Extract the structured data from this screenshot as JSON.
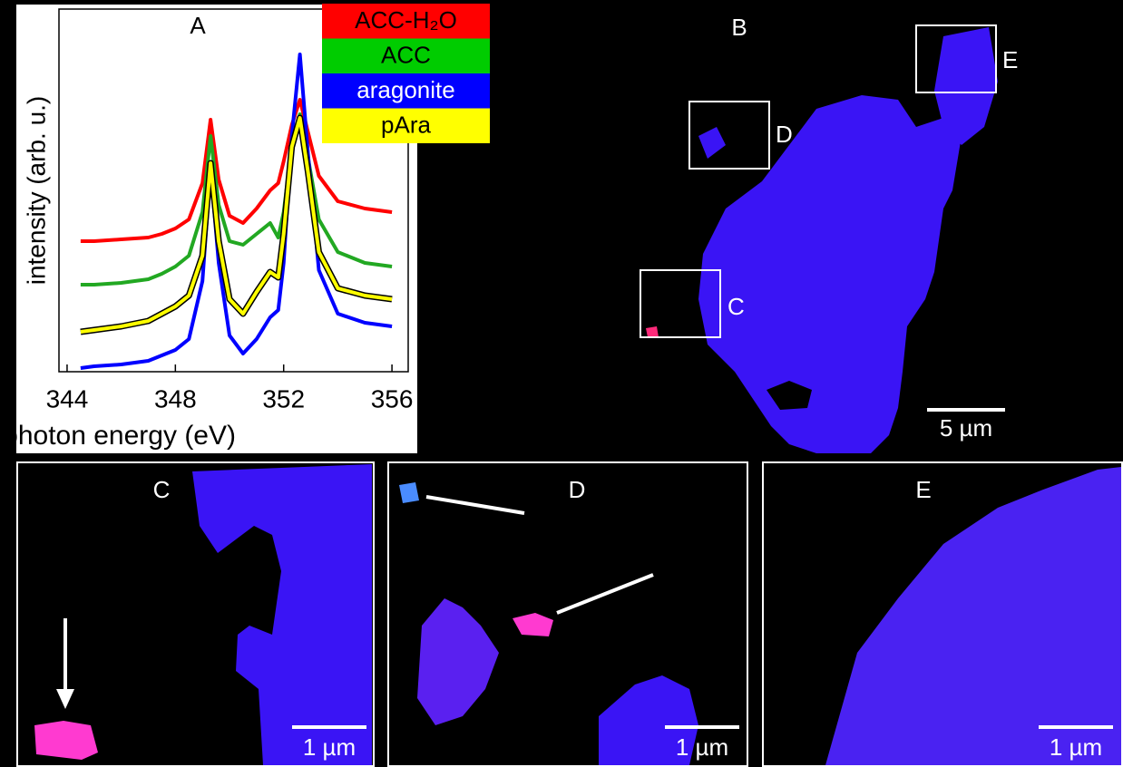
{
  "chart_data": {
    "type": "line",
    "title": "A",
    "x_label": "photon energy (eV)",
    "y_label": "intensity (arb. u.)",
    "x": [
      344.5,
      345,
      346,
      347,
      347.5,
      348,
      348.5,
      349,
      349.3,
      349.6,
      350,
      350.5,
      351,
      351.5,
      351.8,
      352,
      352.3,
      352.6,
      352.9,
      353.3,
      354,
      355,
      356
    ],
    "series": [
      {
        "name": "ACC-H₂O",
        "color": "#ff0000",
        "values": [
          3.6,
          3.6,
          3.65,
          3.7,
          3.8,
          3.95,
          4.2,
          5.2,
          6.95,
          5.3,
          4.3,
          4.1,
          4.5,
          5.0,
          5.2,
          5.8,
          6.8,
          7.5,
          6.6,
          5.4,
          4.7,
          4.5,
          4.4
        ]
      },
      {
        "name": "ACC",
        "color": "#22a822",
        "values": [
          2.4,
          2.4,
          2.45,
          2.55,
          2.7,
          2.9,
          3.2,
          4.4,
          6.5,
          4.6,
          3.6,
          3.5,
          3.8,
          4.1,
          3.7,
          4.4,
          6.2,
          7.1,
          5.9,
          4.2,
          3.3,
          3.0,
          2.9
        ]
      },
      {
        "name": "aragonite",
        "color": "#0000ff",
        "values": [
          0.1,
          0.15,
          0.2,
          0.3,
          0.45,
          0.6,
          0.9,
          2.5,
          5.6,
          3.0,
          1.0,
          0.5,
          0.9,
          1.5,
          1.7,
          3.0,
          6.5,
          8.75,
          6.0,
          2.8,
          1.6,
          1.35,
          1.25
        ]
      },
      {
        "name": "pAra",
        "color": "#ffff00",
        "values": [
          1.1,
          1.15,
          1.25,
          1.4,
          1.6,
          1.8,
          2.1,
          3.2,
          5.75,
          3.6,
          2.0,
          1.6,
          2.2,
          2.75,
          2.6,
          3.8,
          6.2,
          7.0,
          5.5,
          3.3,
          2.3,
          2.1,
          2.0
        ]
      }
    ],
    "xlim": [
      343.7,
      356.6
    ],
    "xticks": [
      344,
      348,
      352,
      356
    ],
    "ylim": [
      0,
      10
    ],
    "legend": "top-right"
  },
  "panels": {
    "b": {
      "label": "B",
      "insets": [
        "C",
        "D",
        "E"
      ],
      "scale_bar": "5 µm"
    },
    "c": {
      "label": "C",
      "scale_bar": "1 µm"
    },
    "d": {
      "label": "D",
      "scale_bar": "1 µm"
    },
    "e": {
      "label": "E",
      "scale_bar": "1 µm"
    }
  }
}
